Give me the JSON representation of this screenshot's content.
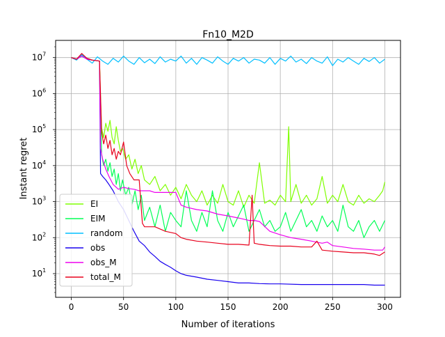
{
  "chart_data": {
    "type": "line",
    "title": "Fn10_M2D",
    "xlabel": "Number of iterations",
    "ylabel": "Instant regret",
    "xlim": [
      -15,
      315
    ],
    "ylim": [
      2.2,
      30000000
    ],
    "yscale": "log",
    "grid": true,
    "legend_position": "lower-left",
    "xticks": [
      0,
      50,
      100,
      150,
      200,
      250,
      300
    ],
    "xtick_labels": [
      "0",
      "50",
      "100",
      "150",
      "200",
      "250",
      "300"
    ],
    "yticks": [
      10,
      100,
      1000,
      10000,
      100000,
      1000000,
      10000000
    ],
    "ytick_labels": [
      {
        "base": "10",
        "exp": "1"
      },
      {
        "base": "10",
        "exp": "2"
      },
      {
        "base": "10",
        "exp": "3"
      },
      {
        "base": "10",
        "exp": "4"
      },
      {
        "base": "10",
        "exp": "5"
      },
      {
        "base": "10",
        "exp": "6"
      },
      {
        "base": "10",
        "exp": "7"
      }
    ],
    "series": [
      {
        "name": "EI",
        "color": "#7fff00",
        "x": [
          0,
          5,
          10,
          15,
          20,
          27,
          29,
          31,
          33,
          35,
          37,
          39,
          41,
          43,
          45,
          47,
          49,
          52,
          55,
          58,
          61,
          64,
          67,
          70,
          75,
          80,
          85,
          90,
          95,
          100,
          105,
          110,
          115,
          120,
          125,
          130,
          135,
          140,
          145,
          150,
          155,
          160,
          165,
          170,
          175,
          180,
          185,
          190,
          195,
          200,
          205,
          208,
          210,
          215,
          220,
          225,
          230,
          235,
          240,
          245,
          250,
          255,
          260,
          265,
          270,
          275,
          280,
          285,
          290,
          295,
          298,
          300
        ],
        "y": [
          10000000,
          9000000,
          12000000,
          9500000,
          8500000,
          8000000,
          110000,
          60000,
          150000,
          90000,
          180000,
          60000,
          40000,
          120000,
          50000,
          25000,
          30000,
          15000,
          20000,
          8000,
          15000,
          6000,
          10000,
          4000,
          3000,
          5000,
          2000,
          3000,
          1500,
          2500,
          1200,
          3000,
          1500,
          1000,
          2000,
          800,
          1500,
          900,
          3000,
          1000,
          800,
          2000,
          700,
          1500,
          900,
          12000,
          900,
          1100,
          800,
          1500,
          1000,
          120000,
          1000,
          3000,
          900,
          1500,
          800,
          1200,
          5000,
          900,
          1500,
          1000,
          3000,
          1000,
          800,
          1500,
          900,
          1200,
          1000,
          1500,
          2000,
          3500
        ]
      },
      {
        "name": "EIM",
        "color": "#00ff55",
        "x": [
          0,
          5,
          10,
          15,
          20,
          27,
          29,
          31,
          33,
          35,
          37,
          39,
          41,
          43,
          45,
          47,
          49,
          52,
          55,
          58,
          61,
          64,
          67,
          70,
          75,
          80,
          85,
          90,
          95,
          100,
          105,
          110,
          115,
          120,
          125,
          130,
          135,
          140,
          145,
          150,
          155,
          160,
          165,
          170,
          175,
          180,
          185,
          190,
          195,
          200,
          205,
          210,
          215,
          220,
          225,
          230,
          235,
          240,
          245,
          250,
          255,
          260,
          265,
          270,
          275,
          280,
          285,
          290,
          295,
          300
        ],
        "y": [
          10000000,
          9000000,
          12000000,
          9500000,
          8500000,
          8000000,
          20000,
          10000,
          15000,
          7000,
          12000,
          5000,
          8000,
          3000,
          6000,
          2000,
          4000,
          1500,
          2500,
          800,
          2000,
          600,
          1500,
          300,
          700,
          200,
          800,
          150,
          500,
          300,
          200,
          2000,
          300,
          150,
          500,
          200,
          2000,
          300,
          150,
          500,
          200,
          400,
          800,
          150,
          300,
          600,
          200,
          300,
          150,
          200,
          500,
          150,
          300,
          600,
          200,
          300,
          150,
          400,
          200,
          300,
          150,
          800,
          200,
          150,
          300,
          100,
          200,
          300,
          150,
          300
        ]
      },
      {
        "name": "random",
        "color": "#00bfff",
        "x": [
          0,
          5,
          10,
          15,
          20,
          25,
          30,
          35,
          40,
          45,
          50,
          55,
          60,
          65,
          70,
          75,
          80,
          85,
          90,
          95,
          100,
          105,
          110,
          115,
          120,
          125,
          130,
          135,
          140,
          145,
          150,
          155,
          160,
          165,
          170,
          175,
          180,
          185,
          190,
          195,
          200,
          205,
          210,
          215,
          220,
          225,
          230,
          235,
          240,
          245,
          250,
          255,
          260,
          265,
          270,
          275,
          280,
          285,
          290,
          295,
          300
        ],
        "y": [
          10000000,
          8500000,
          12000000,
          9000000,
          7000000,
          10500000,
          8000000,
          6500000,
          9500000,
          7500000,
          11000000,
          8000000,
          6500000,
          10000000,
          7200000,
          9000000,
          6800000,
          10500000,
          7500000,
          9000000,
          8000000,
          11000000,
          7000000,
          9500000,
          6500000,
          10000000,
          8500000,
          7000000,
          10500000,
          8000000,
          6500000,
          9500000,
          8000000,
          10000000,
          7000000,
          9000000,
          8500000,
          7000000,
          10000000,
          6500000,
          9500000,
          8000000,
          11000000,
          7500000,
          9000000,
          6800000,
          10000000,
          8000000,
          7000000,
          10500000,
          6000000,
          9000000,
          7500000,
          10000000,
          8000000,
          6500000,
          9500000,
          7800000,
          10000000,
          7000000,
          9000000
        ]
      },
      {
        "name": "obs",
        "color": "#1800ee",
        "x": [
          0,
          5,
          10,
          15,
          20,
          27,
          28,
          30,
          33,
          36,
          40,
          45,
          50,
          55,
          60,
          65,
          70,
          75,
          80,
          85,
          90,
          95,
          100,
          105,
          110,
          120,
          130,
          140,
          150,
          160,
          170,
          180,
          190,
          200,
          220,
          240,
          260,
          280,
          290,
          300
        ],
        "y": [
          10000000,
          9000000,
          11000000,
          9000000,
          8500000,
          8000000,
          6000,
          5000,
          4000,
          3000,
          2000,
          1000,
          600,
          300,
          150,
          80,
          60,
          40,
          30,
          22,
          18,
          15,
          12,
          10,
          9,
          8,
          7,
          6.5,
          6,
          5.5,
          5.5,
          5.3,
          5.2,
          5.2,
          5,
          5,
          5,
          5,
          4.8,
          4.8
        ]
      },
      {
        "name": "obs_M",
        "color": "#ee00ee",
        "x": [
          0,
          5,
          10,
          15,
          20,
          27,
          28,
          30,
          33,
          36,
          40,
          45,
          50,
          55,
          60,
          65,
          70,
          75,
          80,
          90,
          100,
          105,
          110,
          120,
          130,
          140,
          150,
          160,
          170,
          175,
          180,
          190,
          200,
          210,
          220,
          230,
          240,
          245,
          250,
          260,
          270,
          280,
          290,
          298,
          300
        ],
        "y": [
          10000000,
          9000000,
          11000000,
          9000000,
          8500000,
          8000000,
          30000,
          15000,
          8000,
          5000,
          3000,
          2200,
          2500,
          2300,
          2200,
          2000,
          2000,
          2000,
          1800,
          1800,
          1800,
          800,
          700,
          600,
          550,
          450,
          400,
          350,
          300,
          300,
          280,
          150,
          120,
          100,
          90,
          80,
          70,
          75,
          60,
          55,
          50,
          48,
          45,
          45,
          55
        ]
      },
      {
        "name": "total_M",
        "color": "#e8001c",
        "x": [
          0,
          5,
          10,
          15,
          20,
          27,
          29,
          31,
          33,
          35,
          37,
          39,
          41,
          43,
          45,
          47,
          50,
          53,
          56,
          60,
          65,
          68,
          70,
          75,
          80,
          90,
          100,
          105,
          110,
          120,
          130,
          140,
          150,
          160,
          170,
          173,
          175,
          180,
          190,
          200,
          210,
          220,
          230,
          235,
          240,
          250,
          260,
          270,
          280,
          290,
          295,
          300
        ],
        "y": [
          10000000,
          9000000,
          13000000,
          9500000,
          8500000,
          8000000,
          90000,
          40000,
          70000,
          30000,
          50000,
          20000,
          30000,
          15000,
          25000,
          20000,
          45000,
          10000,
          6000,
          4000,
          4000,
          250,
          200,
          200,
          200,
          150,
          130,
          100,
          90,
          80,
          75,
          70,
          65,
          65,
          62,
          1500,
          70,
          65,
          60,
          58,
          58,
          55,
          55,
          80,
          45,
          42,
          40,
          38,
          38,
          35,
          32,
          40
        ]
      }
    ]
  }
}
